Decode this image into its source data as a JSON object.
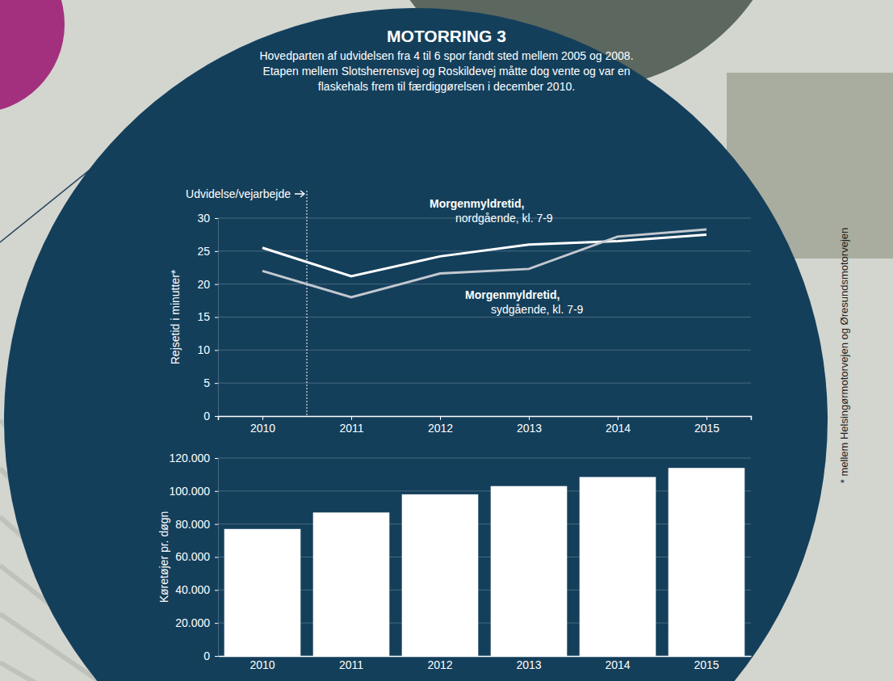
{
  "chart_data": [
    {
      "type": "line",
      "title": "MOTORRING 3",
      "subtitle": "Hovedparten af udvidelsen fra 4 til 6 spor fandt sted mellem 2005 og 2008. Etapen mellem Slotsherrensvej og Roskildevej måtte dog vente og var en flaskehals frem til færdiggørelsen i december 2010.",
      "y_label": "Rejsetid i minutter*",
      "footnote": "* mellem Helsingørmotorvejen og Øresundsmotorvejen",
      "annotations": [
        {
          "text": "Udvidelse/vejarbejde",
          "x": 2010.5
        }
      ],
      "x": [
        2010,
        2011,
        2012,
        2013,
        2014,
        2015
      ],
      "xlim": [
        2009.5,
        2015.5
      ],
      "xticks": [
        2010,
        2011,
        2012,
        2013,
        2014,
        2015
      ],
      "ylim": [
        0,
        30
      ],
      "yticks": [
        0,
        5,
        10,
        15,
        20,
        25,
        30
      ],
      "grid": true,
      "series": [
        {
          "name": "Morgenmyldretid, nordgående, kl. 7-9",
          "color": "#ffffff",
          "values": [
            25.5,
            21.2,
            24.2,
            26,
            26.5,
            27.5
          ]
        },
        {
          "name": "Morgenmyldretid, sydgående, kl. 7-9",
          "color": "#c3c9d0",
          "values": [
            22,
            18,
            21.6,
            22.3,
            27.2,
            28.3
          ]
        }
      ]
    },
    {
      "type": "bar",
      "y_label": "Køretøjer pr. døgn",
      "categories": [
        "2010",
        "2011",
        "2012",
        "2013",
        "2014",
        "2015"
      ],
      "values": [
        77000,
        87000,
        98000,
        103000,
        108500,
        114000
      ],
      "color": "#ffffff",
      "ylim": [
        0,
        120000
      ],
      "yticks": [
        0,
        {
          "value": 20000,
          "label": "20.000"
        },
        {
          "value": 40000,
          "label": "40.000"
        },
        {
          "value": 60000,
          "label": "60.000"
        },
        {
          "value": 80000,
          "label": "80.000"
        },
        {
          "value": 100000,
          "label": "100.000"
        },
        {
          "value": 120000,
          "label": "120.000"
        }
      ],
      "grid": true
    }
  ]
}
